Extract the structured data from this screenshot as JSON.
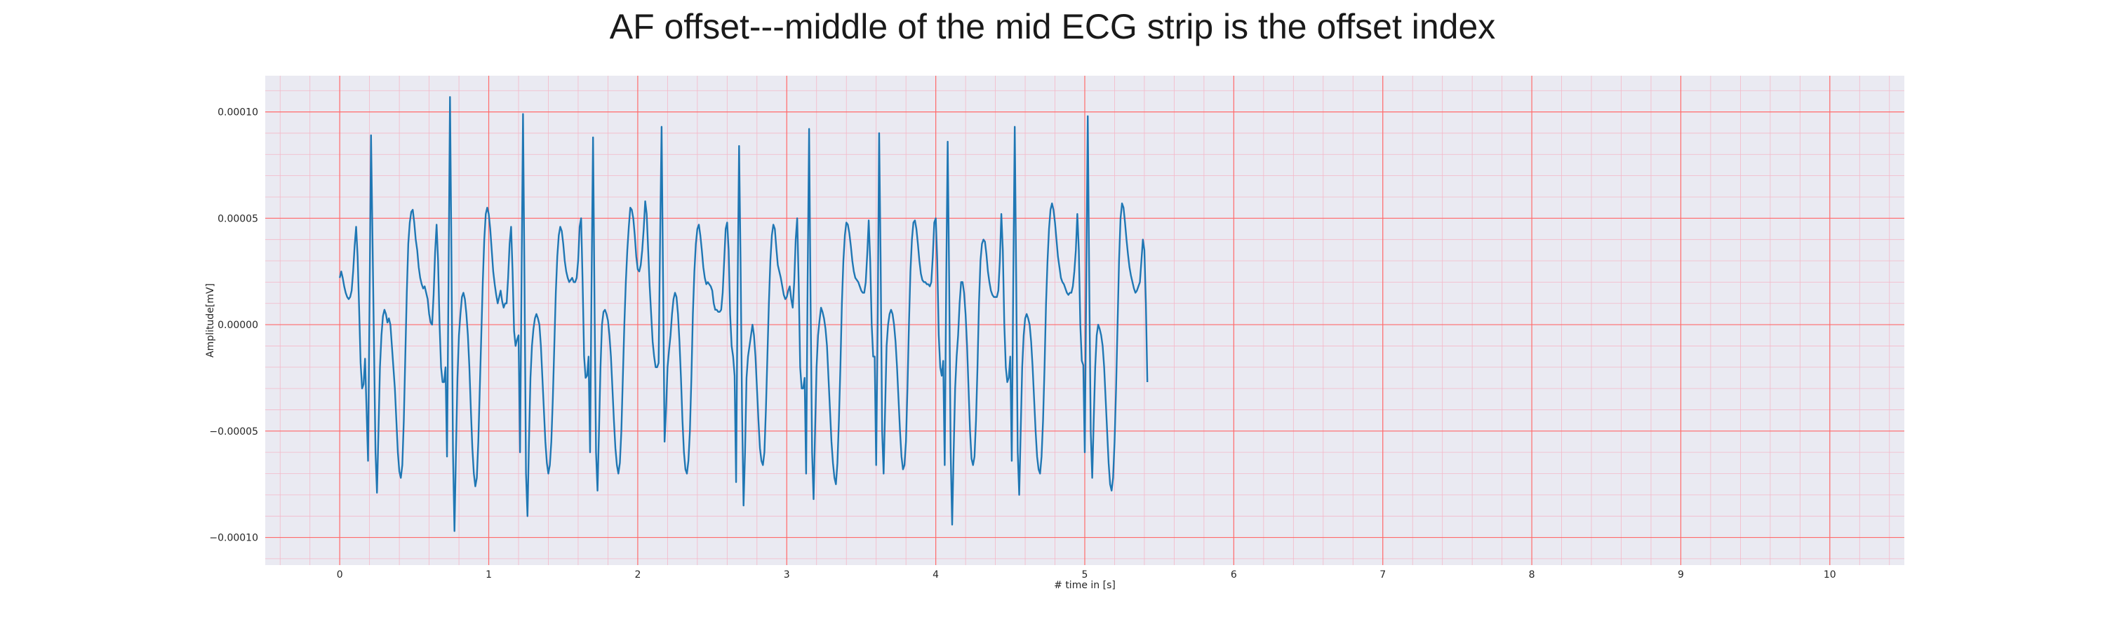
{
  "chart_data": {
    "type": "line",
    "title": "AF offset---middle of the mid ECG strip is the offset index",
    "xlabel": "# time in [s]",
    "ylabel": "Amplitude[mV]",
    "xlim": [
      -0.5,
      10.5
    ],
    "ylim": [
      -0.000113,
      0.000117
    ],
    "x_ticks": [
      0,
      1,
      2,
      3,
      4,
      5,
      6,
      7,
      8,
      9,
      10
    ],
    "x_tick_labels": [
      "0",
      "1",
      "2",
      "3",
      "4",
      "5",
      "6",
      "7",
      "8",
      "9",
      "10"
    ],
    "y_ticks": [
      -0.0001,
      -5e-05,
      0.0,
      5e-05,
      0.0001
    ],
    "y_tick_labels": [
      "−0.00010",
      "−0.00005",
      "0.00000",
      "0.00005",
      "0.00010"
    ],
    "grid": true,
    "minor_grid": true,
    "colors": {
      "background": "#eaeaf2",
      "major_grid": "#ff6b6b",
      "minor_grid": "#f4b8c8",
      "line": "#1f77b4"
    },
    "series": [
      {
        "sampling_interval_s": 0.01,
        "values": [
          2.2e-05,
          2.5e-05,
          2.2e-05,
          1.8e-05,
          1.5e-05,
          1.3e-05,
          1.2e-05,
          1.3e-05,
          1.6e-05,
          2.5e-05,
          3.7e-05,
          4.6e-05,
          3.2e-05,
          8e-06,
          -1.8e-05,
          -3e-05,
          -2.8e-05,
          -1.6e-05,
          -4e-05,
          -6.4e-05,
          1e-05,
          8.9e-05,
          4e-05,
          -1e-05,
          -6e-05,
          -7.9e-05,
          -5e-05,
          -2e-05,
          -5e-06,
          4e-06,
          7e-06,
          5e-06,
          1e-06,
          3e-06,
          0.0,
          -1e-05,
          -2e-05,
          -3e-05,
          -4.5e-05,
          -6e-05,
          -6.9e-05,
          -7.2e-05,
          -6.6e-05,
          -4.5e-05,
          -1.5e-05,
          1.5e-05,
          3.8e-05,
          4.8e-05,
          5.3e-05,
          5.4e-05,
          4.8e-05,
          4e-05,
          3.5e-05,
          2.7e-05,
          2.2e-05,
          1.9e-05,
          1.7e-05,
          1.8e-05,
          1.5e-05,
          1.2e-05,
          5e-06,
          1e-06,
          0.0,
          1.4e-05,
          3.4e-05,
          4.7e-05,
          3e-05,
          0.0,
          -2e-05,
          -2.7e-05,
          -2.7e-05,
          -2e-05,
          -6.2e-05,
          2e-05,
          0.000107,
          3e-05,
          -6e-05,
          -9.7e-05,
          -6e-05,
          -2.5e-05,
          -5e-06,
          5e-06,
          1.3e-05,
          1.5e-05,
          1.2e-05,
          5e-06,
          -5e-06,
          -2e-05,
          -4e-05,
          -5.8e-05,
          -7e-05,
          -7.6e-05,
          -7.2e-05,
          -5.5e-05,
          -3e-05,
          -5e-06,
          2e-05,
          4e-05,
          5.2e-05,
          5.5e-05,
          5.2e-05,
          4.5e-05,
          3.5e-05,
          2.5e-05,
          1.9e-05,
          1.4e-05,
          1e-05,
          1.3e-05,
          1.6e-05,
          1.1e-05,
          8e-06,
          1e-05,
          1e-05,
          2.2e-05,
          3.8e-05,
          4.6e-05,
          2.5e-05,
          -3e-06,
          -1e-05,
          -7e-06,
          -5e-06,
          -6e-05,
          2e-05,
          9.9e-05,
          2e-05,
          -7e-05,
          -9e-05,
          -5.5e-05,
          -2.5e-05,
          -1e-05,
          -2e-06,
          3e-06,
          5e-06,
          3e-06,
          0.0,
          -1e-05,
          -2.5e-05,
          -4e-05,
          -5.5e-05,
          -6.5e-05,
          -7e-05,
          -6.6e-05,
          -5.5e-05,
          -3.5e-05,
          -1e-05,
          1.5e-05,
          3.2e-05,
          4.2e-05,
          4.6e-05,
          4.4e-05,
          3.8e-05,
          3e-05,
          2.5e-05,
          2.2e-05,
          2e-05,
          2.1e-05,
          2.2e-05,
          2e-05,
          2e-05,
          2.2e-05,
          3e-05,
          4.6e-05,
          5e-05,
          2e-05,
          -1.5e-05,
          -2.5e-05,
          -2.4e-05,
          -1.5e-05,
          -6e-05,
          2e-05,
          8.8e-05,
          1e-05,
          -6e-05,
          -7.8e-05,
          -5e-05,
          -2e-05,
          0.0,
          6e-06,
          7e-06,
          5e-06,
          2e-06,
          -5e-06,
          -1.5e-05,
          -3e-05,
          -4.5e-05,
          -5.8e-05,
          -6.6e-05,
          -7e-05,
          -6.5e-05,
          -5e-05,
          -2.5e-05,
          0.0,
          2e-05,
          3.5e-05,
          4.6e-05,
          5.5e-05,
          5.4e-05,
          5e-05,
          4.2e-05,
          3.2e-05,
          2.6e-05,
          2.5e-05,
          2.8e-05,
          3.5e-05,
          4.5e-05,
          5.8e-05,
          5.2e-05,
          3.5e-05,
          1.8e-05,
          5e-06,
          -8e-06,
          -1.5e-05,
          -2e-05,
          -2e-05,
          -1.8e-05,
          4e-05,
          9.3e-05,
          2e-05,
          -5.5e-05,
          -4e-05,
          -2e-05,
          -1.2e-05,
          -5e-06,
          5e-06,
          1.2e-05,
          1.5e-05,
          1.3e-05,
          5e-06,
          -8e-06,
          -2.5e-05,
          -4.5e-05,
          -6e-05,
          -6.8e-05,
          -7e-05,
          -6.4e-05,
          -5e-05,
          -2.5e-05,
          5e-06,
          2.5e-05,
          3.8e-05,
          4.5e-05,
          4.7e-05,
          4.2e-05,
          3.5e-05,
          2.7e-05,
          2.2e-05,
          1.9e-05,
          2e-05,
          1.9e-05,
          1.8e-05,
          1.6e-05,
          1e-05,
          7e-06,
          7e-06,
          6e-06,
          6e-06,
          7e-06,
          1.5e-05,
          3e-05,
          4.5e-05,
          4.8e-05,
          3.5e-05,
          5e-06,
          -1e-05,
          -1.5e-05,
          -2.4e-05,
          -7.4e-05,
          1.5e-05,
          8.4e-05,
          3e-05,
          -4e-05,
          -8.5e-05,
          -6e-05,
          -2.5e-05,
          -1.5e-05,
          -1e-05,
          -5e-06,
          0.0,
          -5e-06,
          -1.5e-05,
          -3e-05,
          -4.5e-05,
          -5.8e-05,
          -6.4e-05,
          -6.6e-05,
          -6e-05,
          -4e-05,
          -1.5e-05,
          1e-05,
          3e-05,
          4.2e-05,
          4.7e-05,
          4.5e-05,
          3.6e-05,
          2.8e-05,
          2.5e-05,
          2.2e-05,
          1.8e-05,
          1.4e-05,
          1.2e-05,
          1.3e-05,
          1.6e-05,
          1.8e-05,
          1.2e-05,
          8e-06,
          2e-05,
          4e-05,
          5e-05,
          2e-05,
          -2e-05,
          -3e-05,
          -3e-05,
          -2.5e-05,
          -7e-05,
          2e-05,
          9.2e-05,
          1e-05,
          -6e-05,
          -8.2e-05,
          -5e-05,
          -2e-05,
          -5e-06,
          2e-06,
          8e-06,
          6e-06,
          3e-06,
          -2e-06,
          -1e-05,
          -2.5e-05,
          -4e-05,
          -5.5e-05,
          -6.5e-05,
          -7.2e-05,
          -7.5e-05,
          -6.5e-05,
          -4.5e-05,
          -2e-05,
          1e-05,
          3e-05,
          4.2e-05,
          4.8e-05,
          4.7e-05,
          4.3e-05,
          3.7e-05,
          3e-05,
          2.5e-05,
          2.2e-05,
          2.1e-05,
          2e-05,
          1.8e-05,
          1.6e-05,
          1.5e-05,
          1.5e-05,
          2e-05,
          3.3e-05,
          4.9e-05,
          3e-05,
          0.0,
          -1.5e-05,
          -1.5e-05,
          -6.6e-05,
          0.0,
          9e-05,
          3e-05,
          -5e-05,
          -7e-05,
          -4e-05,
          -1e-05,
          0.0,
          5e-06,
          7e-06,
          5e-06,
          0.0,
          -8e-06,
          -2e-05,
          -3.5e-05,
          -5e-05,
          -6.2e-05,
          -6.8e-05,
          -6.6e-05,
          -5.5e-05,
          -3e-05,
          0.0,
          2.5e-05,
          4e-05,
          4.8e-05,
          4.9e-05,
          4.5e-05,
          3.8e-05,
          3e-05,
          2.4e-05,
          2.1e-05,
          2e-05,
          2e-05,
          1.9e-05,
          1.9e-05,
          1.8e-05,
          2e-05,
          3.2e-05,
          4.8e-05,
          5e-05,
          3e-05,
          -5e-06,
          -2e-05,
          -2.4e-05,
          -1.7e-05,
          -6.6e-05,
          2e-05,
          8.6e-05,
          2e-05,
          -6e-05,
          -9.4e-05,
          -6e-05,
          -3e-05,
          -1.5e-05,
          -5e-06,
          1e-05,
          2e-05,
          2e-05,
          1.5e-05,
          5e-06,
          -1e-05,
          -3e-05,
          -5e-05,
          -6.3e-05,
          -6.6e-05,
          -6.2e-05,
          -4.5e-05,
          -2e-05,
          1e-05,
          3e-05,
          3.8e-05,
          4e-05,
          3.9e-05,
          3.3e-05,
          2.5e-05,
          2e-05,
          1.6e-05,
          1.4e-05,
          1.3e-05,
          1.3e-05,
          1.3e-05,
          1.6e-05,
          3e-05,
          5.2e-05,
          3.5e-05,
          0.0,
          -2e-05,
          -2.7e-05,
          -2.5e-05,
          -1.5e-05,
          -6.4e-05,
          2e-05,
          9.3e-05,
          2e-05,
          -6e-05,
          -8e-05,
          -5e-05,
          -2e-05,
          -5e-06,
          3e-06,
          5e-06,
          3e-06,
          0.0,
          -8e-06,
          -2e-05,
          -3.5e-05,
          -5e-05,
          -6.2e-05,
          -6.8e-05,
          -7e-05,
          -6.2e-05,
          -4.5e-05,
          -2e-05,
          1e-05,
          3e-05,
          4.5e-05,
          5.4e-05,
          5.7e-05,
          5.4e-05,
          4.8e-05,
          4e-05,
          3.2e-05,
          2.7e-05,
          2.2e-05,
          2e-05,
          1.9e-05,
          1.7e-05,
          1.5e-05,
          1.4e-05,
          1.5e-05,
          1.5e-05,
          1.8e-05,
          2.5e-05,
          3.5e-05,
          5.2e-05,
          3.5e-05,
          0.0,
          -1.7e-05,
          -1.9e-05,
          -6e-05,
          2e-05,
          9.8e-05,
          2e-05,
          -5e-05,
          -7.2e-05,
          -4.5e-05,
          -2e-05,
          -5e-06,
          0.0,
          -2e-06,
          -5e-06,
          -1e-05,
          -2e-05,
          -3.5e-05,
          -5e-05,
          -6.5e-05,
          -7.5e-05,
          -7.8e-05,
          -7.2e-05,
          -5.5e-05,
          -3e-05,
          0.0,
          3e-05,
          5e-05,
          5.7e-05,
          5.5e-05,
          4.8e-05,
          4e-05,
          3.3e-05,
          2.7e-05,
          2.3e-05,
          2e-05,
          1.7e-05,
          1.5e-05,
          1.6e-05,
          1.8e-05,
          2e-05,
          3e-05,
          4e-05,
          3.5e-05,
          1e-05,
          -2.7e-05
        ]
      }
    ]
  }
}
